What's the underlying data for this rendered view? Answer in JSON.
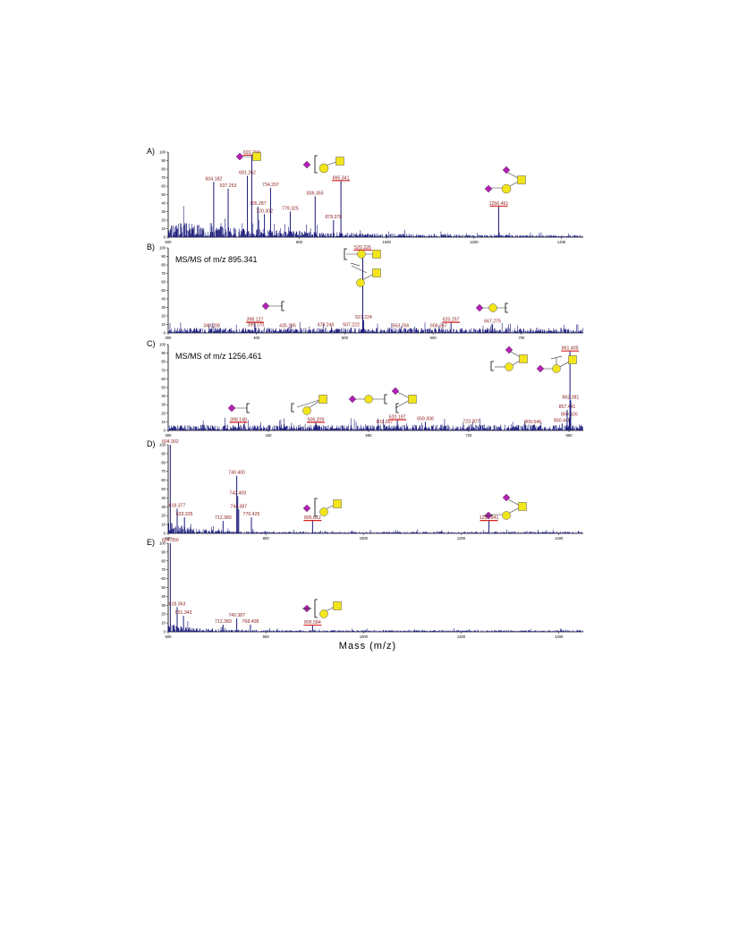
{
  "colors": {
    "trace": "#1a1a7a",
    "label": "#8b1a1a",
    "underline": "#d42020",
    "neu5ac": "#b41fb4",
    "gal": "#f2e51b",
    "galnac": "#f2e51b",
    "axis": "#000000"
  },
  "xlabel": "Mass (m/z)",
  "chart_data": [
    {
      "type": "line",
      "panel": "A)",
      "title": "",
      "xlim": [
        500,
        1450
      ],
      "ylim": [
        0,
        100
      ],
      "xticks": [
        500,
        800,
        1000,
        1200,
        1400
      ],
      "yticks": [
        0,
        10,
        20,
        30,
        40,
        50,
        60,
        70,
        80,
        90,
        100
      ],
      "noise": {
        "start": 500,
        "end": 1450,
        "level": 18,
        "decay": 0.004,
        "seed": 3
      },
      "peaks": [
        {
          "mz": 604.182,
          "y": 65,
          "label": "604.182"
        },
        {
          "mz": 637.253,
          "y": 57,
          "label": "637.253"
        },
        {
          "mz": 691.299,
          "y": 96,
          "label": "691.299",
          "underline": true
        },
        {
          "mz": 681.262,
          "y": 72,
          "label": "681.262"
        },
        {
          "mz": 734.297,
          "y": 58,
          "label": "734.297"
        },
        {
          "mz": 705.287,
          "y": 36,
          "label": "705.287"
        },
        {
          "mz": 720.302,
          "y": 27,
          "label": "720.302"
        },
        {
          "mz": 779.325,
          "y": 30,
          "label": "779.325"
        },
        {
          "mz": 836.355,
          "y": 48,
          "label": "836.355"
        },
        {
          "mz": 895.341,
          "y": 66,
          "label": "895.341",
          "underline": true
        },
        {
          "mz": 878.378,
          "y": 20,
          "label": "878.378"
        },
        {
          "mz": 1256.461,
          "y": 36,
          "label": "1256.461",
          "underline": true
        }
      ]
    },
    {
      "type": "line",
      "panel": "B)",
      "title": "MS/MS of m/z 895.341",
      "xlim": [
        300,
        770
      ],
      "ylim": [
        0,
        100
      ],
      "xticks": [
        300,
        400,
        500,
        600,
        700
      ],
      "yticks": [
        0,
        10,
        20,
        30,
        40,
        50,
        60,
        70,
        80,
        90,
        100
      ],
      "noise": {
        "start": 300,
        "end": 770,
        "level": 4,
        "decay": 0.0,
        "seed": 7
      },
      "peaks": [
        {
          "mz": 349.208,
          "y": 5,
          "label": "349.208"
        },
        {
          "mz": 398.127,
          "y": 12,
          "label": "398.127",
          "underline": true
        },
        {
          "mz": 399.17,
          "y": 6,
          "label": "399.170"
        },
        {
          "mz": 435.235,
          "y": 5,
          "label": "435.235"
        },
        {
          "mz": 478.246,
          "y": 6,
          "label": "478.246"
        },
        {
          "mz": 507.222,
          "y": 6,
          "label": "507.222"
        },
        {
          "mz": 520.326,
          "y": 97,
          "label": "520.326",
          "underline": true
        },
        {
          "mz": 521.224,
          "y": 15,
          "label": "521.224"
        },
        {
          "mz": 563.256,
          "y": 5,
          "label": "563.256"
        },
        {
          "mz": 606.267,
          "y": 5,
          "label": "606.267"
        },
        {
          "mz": 620.257,
          "y": 12,
          "label": "620.257",
          "underline": true
        },
        {
          "mz": 667.275,
          "y": 10,
          "label": "667.275"
        }
      ]
    },
    {
      "type": "line",
      "panel": "C)",
      "title": "MS/MS of m/z 1256.461",
      "xlim": [
        300,
        880
      ],
      "ylim": [
        0,
        100
      ],
      "xticks": [
        300,
        440,
        580,
        720,
        860
      ],
      "yticks": [
        0,
        10,
        20,
        30,
        40,
        50,
        60,
        70,
        80,
        90,
        100
      ],
      "noise": {
        "start": 300,
        "end": 880,
        "level": 5,
        "decay": 0.0,
        "seed": 11
      },
      "peaks": [
        {
          "mz": 398.149,
          "y": 9,
          "label": "398.149",
          "underline": true
        },
        {
          "mz": 506.209,
          "y": 9,
          "label": "506.209",
          "underline": true
        },
        {
          "mz": 602.257,
          "y": 6,
          "label": "602.257"
        },
        {
          "mz": 620.197,
          "y": 12,
          "label": "620.197",
          "underline": true
        },
        {
          "mz": 659.308,
          "y": 10,
          "label": "659.308"
        },
        {
          "mz": 723.307,
          "y": 7,
          "label": "723.307"
        },
        {
          "mz": 809.546,
          "y": 6,
          "label": "809.546"
        },
        {
          "mz": 850.44,
          "y": 8,
          "label": "850.440"
        },
        {
          "mz": 860.426,
          "y": 15,
          "label": "860.426"
        },
        {
          "mz": 857.441,
          "y": 24,
          "label": "857.441"
        },
        {
          "mz": 862.381,
          "y": 35,
          "label": "862.381"
        },
        {
          "mz": 861.405,
          "y": 92,
          "label": "861.405",
          "underline": true
        }
      ]
    },
    {
      "type": "line",
      "panel": "D)",
      "title": "",
      "xlim": [
        600,
        1450
      ],
      "ylim": [
        0,
        100
      ],
      "xticks": [
        600,
        800,
        1000,
        1200,
        1400
      ],
      "yticks": [
        0,
        10,
        20,
        30,
        40,
        50,
        60,
        70,
        80,
        90,
        100
      ],
      "noise": {
        "start": 600,
        "end": 1450,
        "level": 12,
        "decay": 0.02,
        "seed": 19
      },
      "peaks": [
        {
          "mz": 604.302,
          "y": 100,
          "label": "604.302"
        },
        {
          "mz": 618.377,
          "y": 28,
          "label": "618.377"
        },
        {
          "mz": 633.335,
          "y": 18,
          "label": "633.335"
        },
        {
          "mz": 740.4,
          "y": 65,
          "label": "740.400"
        },
        {
          "mz": 742.409,
          "y": 42,
          "label": "742.409"
        },
        {
          "mz": 744.387,
          "y": 27,
          "label": "744.387"
        },
        {
          "mz": 712.389,
          "y": 14,
          "label": "712.389"
        },
        {
          "mz": 770.425,
          "y": 18,
          "label": "770.425"
        },
        {
          "mz": 895.612,
          "y": 14,
          "label": "895.612",
          "underline": true
        },
        {
          "mz": 1256.841,
          "y": 14,
          "label": "1256.841",
          "underline": true
        }
      ]
    },
    {
      "type": "line",
      "panel": "E)",
      "title": "",
      "xlim": [
        600,
        1450
      ],
      "ylim": [
        0,
        100
      ],
      "xticks": [
        600,
        800,
        1000,
        1200,
        1400
      ],
      "yticks": [
        0,
        10,
        20,
        30,
        40,
        50,
        60,
        70,
        80,
        90,
        100
      ],
      "noise": {
        "start": 600,
        "end": 1450,
        "level": 8,
        "decay": 0.02,
        "seed": 23
      },
      "peaks": [
        {
          "mz": 604.35,
          "y": 100,
          "label": "604.350"
        },
        {
          "mz": 618.363,
          "y": 28,
          "label": "618.363"
        },
        {
          "mz": 631.343,
          "y": 18,
          "label": "631.343"
        },
        {
          "mz": 740.387,
          "y": 15,
          "label": "740.387"
        },
        {
          "mz": 712.389,
          "y": 8,
          "label": "712.389"
        },
        {
          "mz": 768.408,
          "y": 8,
          "label": "768.408"
        },
        {
          "mz": 895.584,
          "y": 7,
          "label": "895.584",
          "underline": true
        }
      ]
    }
  ]
}
